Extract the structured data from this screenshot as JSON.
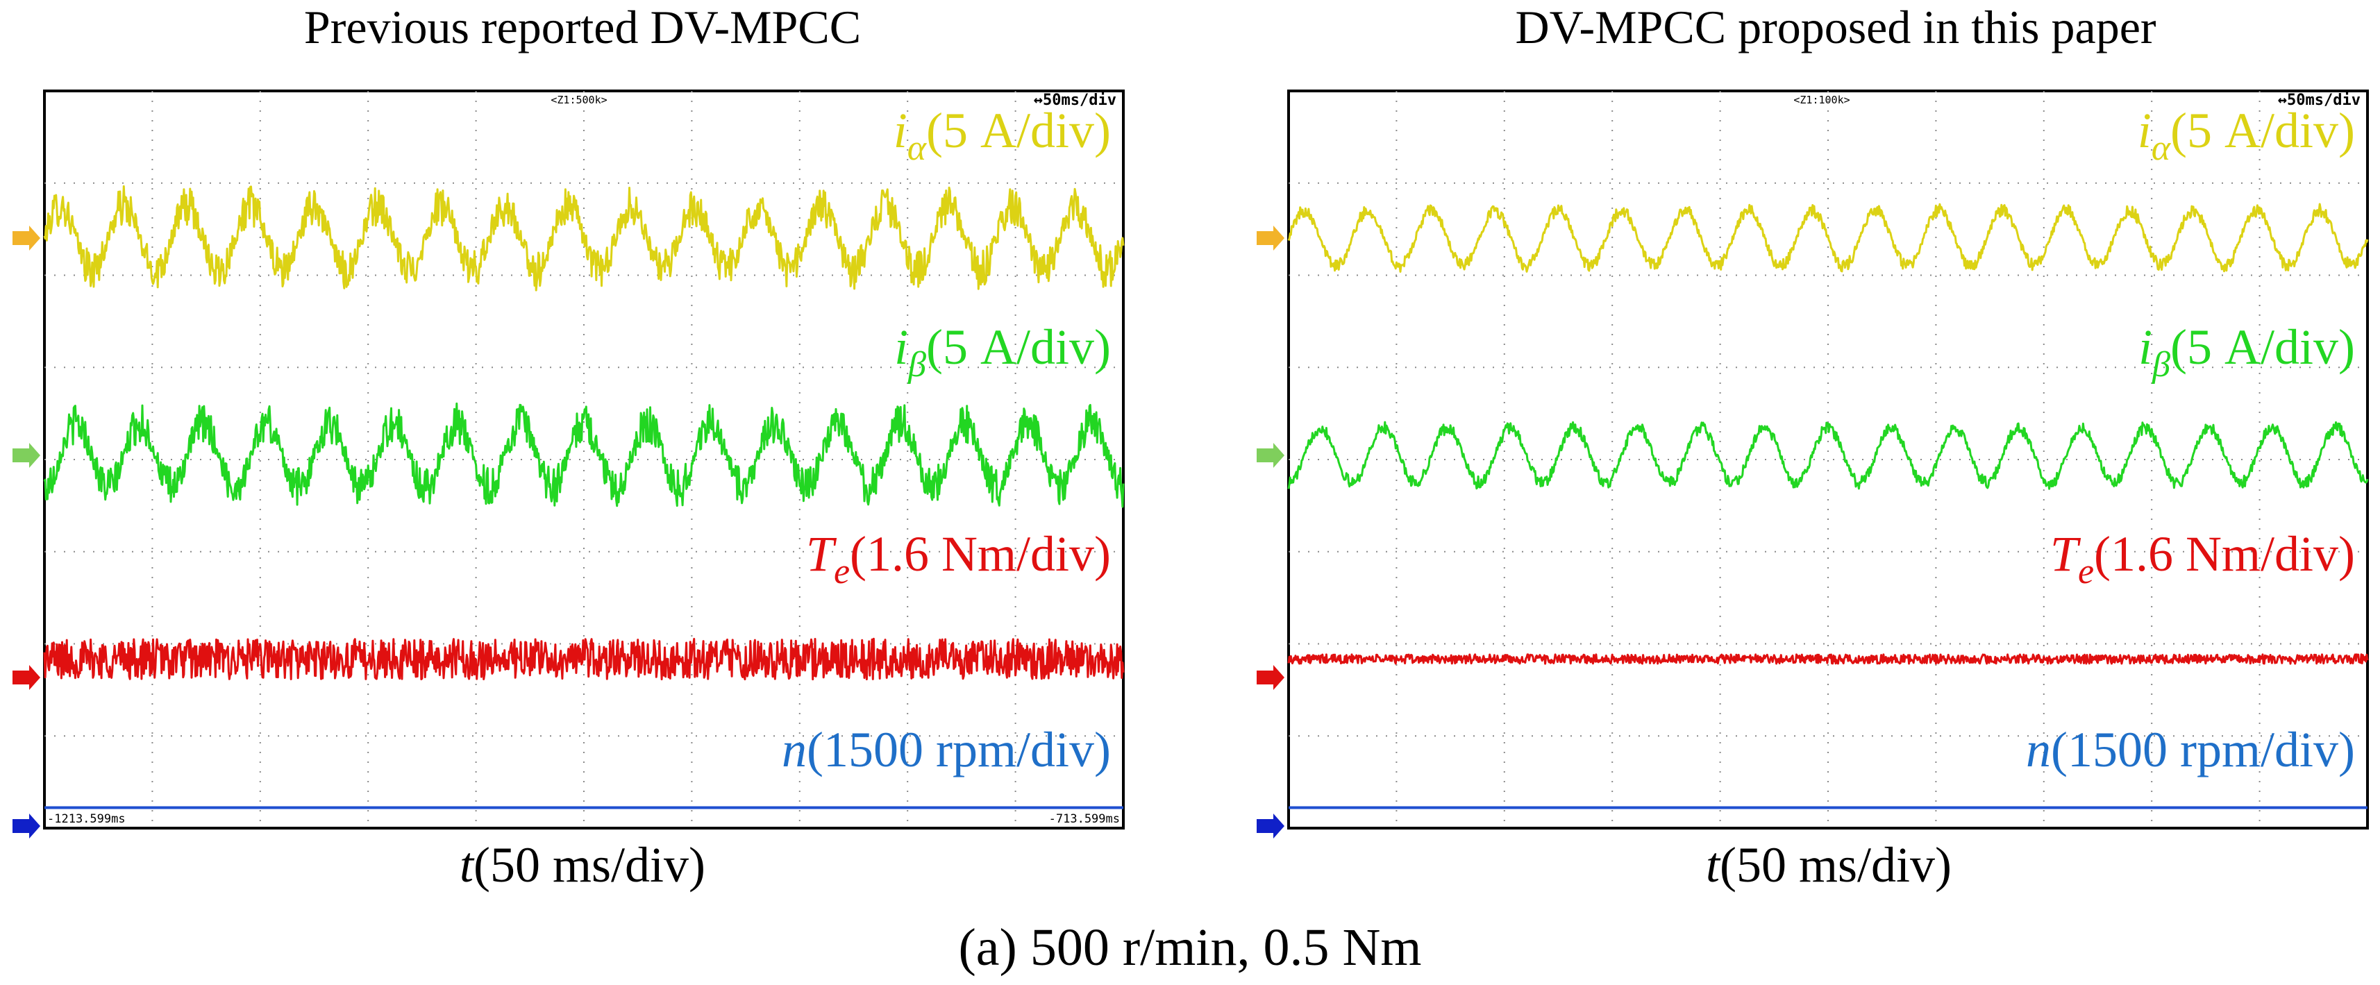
{
  "caption": "(a) 500 r/min, 0.5 Nm",
  "colors": {
    "ialpha": "#dcd214",
    "ibeta": "#22d622",
    "te": "#e01010",
    "n": "#1f4fd0",
    "n_label": "#1f6fc8",
    "grid": "#8a8a8a",
    "marker_ialpha": "#f2b32a",
    "marker_ibeta": "#7fcf5c",
    "marker_te": "#e01010",
    "marker_n": "#1020c8"
  },
  "labels": {
    "ialpha": {
      "sym": "i",
      "sub": "α",
      "text": "(5 A/div)"
    },
    "ibeta": {
      "sym": "i",
      "sub": "β",
      "text": "(5 A/div)"
    },
    "te": {
      "sym": "T",
      "sub": "e",
      "text": "(1.6 Nm/div)"
    },
    "n": {
      "sym": "n",
      "sub": "",
      "text": "(1500 rpm/div)"
    }
  },
  "chart_data": [
    {
      "type": "line",
      "title": "Previous reported DV-MPCC",
      "xlabel": {
        "sym": "t",
        "text": "(50 ms/div)"
      },
      "zoom_label": "<Z1:500k>",
      "timebase_label": "↔50ms/div",
      "t_start_label": "-1213.599ms",
      "t_end_label": "-713.599ms",
      "x_range_ms": [
        0,
        500
      ],
      "divisions": {
        "x": 10,
        "y": 8
      },
      "series": [
        {
          "name": "i_alpha",
          "scale": "5 A/div",
          "cycles": 17,
          "amplitude_div": 0.35,
          "offset_div": 0.0,
          "ripple_div": 0.22,
          "kind": "sine"
        },
        {
          "name": "i_beta",
          "scale": "5 A/div",
          "cycles": 17,
          "amplitude_div": 0.35,
          "offset_div": 0.0,
          "ripple_div": 0.22,
          "kind": "sine",
          "phase_deg": -90
        },
        {
          "name": "Te",
          "scale": "1.6 Nm/div",
          "mean_div": 0.2,
          "ripple_div": 0.22,
          "kind": "noise"
        },
        {
          "name": "n",
          "scale": "1500 rpm/div",
          "mean_div": 0.2,
          "kind": "flat"
        }
      ]
    },
    {
      "type": "line",
      "title": "DV-MPCC proposed in this paper",
      "xlabel": {
        "sym": "t",
        "text": "(50 ms/div)"
      },
      "zoom_label": "<Z1:100k>",
      "timebase_label": "↔50ms/div",
      "x_range_ms": [
        0,
        500
      ],
      "divisions": {
        "x": 10,
        "y": 8
      },
      "series": [
        {
          "name": "i_alpha",
          "scale": "5 A/div",
          "cycles": 17,
          "amplitude_div": 0.3,
          "offset_div": 0.0,
          "ripple_div": 0.07,
          "kind": "sine"
        },
        {
          "name": "i_beta",
          "scale": "5 A/div",
          "cycles": 17,
          "amplitude_div": 0.3,
          "offset_div": 0.0,
          "ripple_div": 0.07,
          "kind": "sine",
          "phase_deg": -90
        },
        {
          "name": "Te",
          "scale": "1.6 Nm/div",
          "mean_div": 0.2,
          "ripple_div": 0.05,
          "kind": "noise"
        },
        {
          "name": "n",
          "scale": "1500 rpm/div",
          "mean_div": 0.2,
          "kind": "flat"
        }
      ]
    }
  ]
}
